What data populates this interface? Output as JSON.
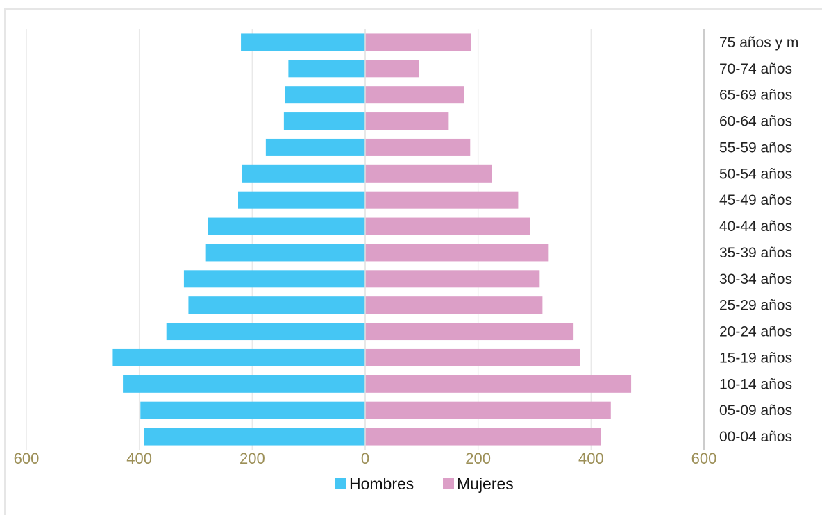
{
  "chart_data": {
    "type": "bar",
    "orientation": "horizontal",
    "layout": "population-pyramid",
    "categories": [
      "75 años y m",
      "70-74 años",
      "65-69 años",
      "60-64 años",
      "55-59 años",
      "50-54 años",
      "45-49 años",
      "40-44 años",
      "35-39 años",
      "30-34 años",
      "25-29 años",
      "20-24 años",
      "15-19 años",
      "10-14 años",
      "05-09 años",
      "00-04 años"
    ],
    "series": [
      {
        "name": "Hombres",
        "color": "#45c6f4",
        "side": "left",
        "values": [
          220,
          136,
          142,
          144,
          176,
          218,
          225,
          279,
          282,
          321,
          313,
          352,
          447,
          429,
          398,
          392
        ]
      },
      {
        "name": "Mujeres",
        "color": "#dc9fc7",
        "side": "right",
        "values": [
          188,
          95,
          175,
          148,
          186,
          225,
          271,
          292,
          325,
          309,
          314,
          369,
          381,
          471,
          435,
          418
        ]
      }
    ],
    "x_ticks": [
      "600",
      "400",
      "200",
      "0",
      "200",
      "400",
      "600"
    ],
    "xlim": [
      -600,
      600
    ],
    "grid": true,
    "category_axis_side": "right",
    "legend_position": "bottom"
  }
}
